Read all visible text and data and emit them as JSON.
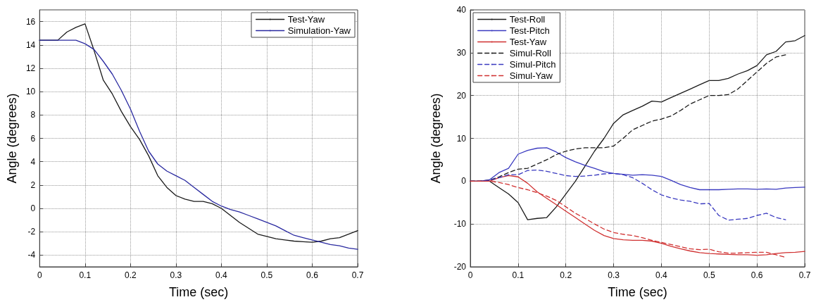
{
  "chart_data": [
    {
      "type": "line",
      "xlabel": "Time (sec)",
      "ylabel": "Angle (degrees)",
      "xlim": [
        0,
        0.7
      ],
      "xticks": [
        0,
        0.1,
        0.2,
        0.3,
        0.4,
        0.5,
        0.6,
        0.7
      ],
      "ylim": [
        -5,
        17
      ],
      "yticks": [
        -4,
        -2,
        0,
        2,
        4,
        6,
        8,
        10,
        12,
        14,
        16
      ],
      "grid": true,
      "legend": "top right",
      "marker": "none",
      "x": [
        0,
        0.02,
        0.04,
        0.06,
        0.08,
        0.1,
        0.12,
        0.14,
        0.16,
        0.18,
        0.2,
        0.22,
        0.24,
        0.26,
        0.28,
        0.3,
        0.32,
        0.34,
        0.36,
        0.38,
        0.4,
        0.42,
        0.44,
        0.46,
        0.48,
        0.5,
        0.52,
        0.54,
        0.56,
        0.58,
        0.6,
        0.62,
        0.64,
        0.66,
        0.68,
        0.7
      ],
      "series": [
        {
          "name": "Test-Yaw",
          "color": "#1a1a1a",
          "line_style": "solid",
          "values": [
            14.4,
            14.4,
            14.4,
            15.1,
            15.5,
            15.8,
            13.5,
            11.0,
            9.8,
            8.3,
            7.0,
            5.9,
            4.5,
            2.8,
            1.8,
            1.1,
            0.8,
            0.6,
            0.6,
            0.4,
            0.0,
            -0.6,
            -1.2,
            -1.7,
            -2.2,
            -2.4,
            -2.6,
            -2.7,
            -2.8,
            -2.85,
            -2.9,
            -2.8,
            -2.6,
            -2.5,
            -2.2,
            -1.9
          ]
        },
        {
          "name": "Simulation-Yaw",
          "color": "#2a2aa0",
          "line_style": "solid",
          "values": [
            14.4,
            14.4,
            14.4,
            14.4,
            14.4,
            14.1,
            13.6,
            12.6,
            11.5,
            10.1,
            8.5,
            6.6,
            4.9,
            3.8,
            3.2,
            2.8,
            2.4,
            1.8,
            1.2,
            0.6,
            0.2,
            -0.1,
            -0.3,
            -0.6,
            -0.9,
            -1.2,
            -1.5,
            -1.9,
            -2.3,
            -2.5,
            -2.7,
            -2.9,
            -3.1,
            -3.2,
            -3.4,
            -3.5
          ]
        }
      ]
    },
    {
      "type": "line",
      "xlabel": "Time (sec)",
      "ylabel": "Angle (degrees)",
      "xlim": [
        0,
        0.7
      ],
      "xticks": [
        0,
        0.1,
        0.2,
        0.3,
        0.4,
        0.5,
        0.6,
        0.7
      ],
      "ylim": [
        -20,
        40
      ],
      "yticks": [
        -20,
        -10,
        0,
        10,
        20,
        30,
        40
      ],
      "grid": true,
      "legend": "top left",
      "marker": "none",
      "x": [
        0,
        0.02,
        0.04,
        0.06,
        0.08,
        0.1,
        0.12,
        0.14,
        0.16,
        0.18,
        0.2,
        0.22,
        0.24,
        0.26,
        0.28,
        0.3,
        0.32,
        0.34,
        0.36,
        0.38,
        0.4,
        0.42,
        0.44,
        0.46,
        0.48,
        0.5,
        0.52,
        0.54,
        0.56,
        0.58,
        0.6,
        0.62,
        0.64,
        0.66,
        0.68,
        0.7
      ],
      "series": [
        {
          "name": "Test-Roll",
          "color": "#1a1a1a",
          "line_style": "solid",
          "values": [
            0,
            0,
            0,
            -1.5,
            -3,
            -5,
            -9,
            -8.7,
            -8.5,
            -6,
            -3,
            0,
            3.5,
            7,
            10,
            13.5,
            15.5,
            16.5,
            17.5,
            18.7,
            18.5,
            19.5,
            20.5,
            21.5,
            22.5,
            23.5,
            23.5,
            24,
            25,
            25.8,
            27,
            29.5,
            30.3,
            32.5,
            32.8,
            34
          ]
        },
        {
          "name": "Test-Pitch",
          "color": "#3a3ac0",
          "line_style": "solid",
          "values": [
            0,
            0,
            0.3,
            2,
            3,
            6.3,
            7.2,
            7.7,
            7.8,
            6.8,
            5.5,
            4.5,
            3.7,
            3,
            2.2,
            1.8,
            1.6,
            1.4,
            1.5,
            1.4,
            1.1,
            0.2,
            -0.8,
            -1.5,
            -2,
            -2,
            -2,
            -1.9,
            -1.8,
            -1.8,
            -1.9,
            -1.8,
            -1.9,
            -1.6,
            -1.5,
            -1.4
          ]
        },
        {
          "name": "Test-Yaw",
          "color": "#d03030",
          "line_style": "solid",
          "values": [
            0,
            0,
            0,
            0.8,
            1.3,
            1,
            -0.5,
            -2.5,
            -4,
            -5.5,
            -7,
            -8.5,
            -10,
            -11.5,
            -12.7,
            -13.4,
            -13.7,
            -13.8,
            -13.8,
            -14,
            -14.5,
            -15.2,
            -15.8,
            -16.3,
            -16.7,
            -16.9,
            -17,
            -17.1,
            -17.2,
            -17.2,
            -17.3,
            -17.2,
            -16.9,
            -16.7,
            -16.6,
            -16.4
          ]
        },
        {
          "name": "Simul-Roll",
          "color": "#1a1a1a",
          "line_style": "dashed",
          "values": [
            0,
            0,
            0.2,
            1,
            2,
            2.8,
            3,
            4,
            5,
            6.2,
            7,
            7.5,
            7.8,
            7.8,
            7.8,
            8.2,
            10,
            12,
            13,
            14,
            14.5,
            15.2,
            16.5,
            18,
            19,
            20,
            20,
            20.2,
            21.5,
            23.5,
            25.5,
            27.5,
            29,
            29.5,
            null,
            null
          ]
        },
        {
          "name": "Simul-Pitch",
          "color": "#3a3ac0",
          "line_style": "dashed",
          "values": [
            0,
            0,
            0.2,
            0.8,
            1.5,
            1.5,
            2.5,
            2.6,
            2.3,
            1.8,
            1.3,
            1.1,
            1.2,
            1.4,
            1.7,
            1.8,
            1.5,
            0.8,
            -0.5,
            -2,
            -3.2,
            -3.9,
            -4.4,
            -4.7,
            -5.3,
            -5.2,
            -8,
            -9.1,
            -8.9,
            -8.7,
            -8,
            -7.5,
            -8.5,
            -9,
            null,
            null
          ]
        },
        {
          "name": "Simul-Yaw",
          "color": "#d03030",
          "line_style": "dashed",
          "values": [
            0,
            0,
            0,
            -0.3,
            -0.8,
            -1.5,
            -2,
            -2.7,
            -3.5,
            -4.5,
            -6,
            -7.5,
            -8.7,
            -10,
            -11.2,
            -12,
            -12.4,
            -12.7,
            -13.2,
            -13.8,
            -14.3,
            -14.8,
            -15.3,
            -15.8,
            -16,
            -15.9,
            -16.5,
            -16.8,
            -16.8,
            -16.7,
            -16.6,
            -16.6,
            -17.2,
            -17.8,
            null,
            null
          ]
        }
      ]
    }
  ]
}
